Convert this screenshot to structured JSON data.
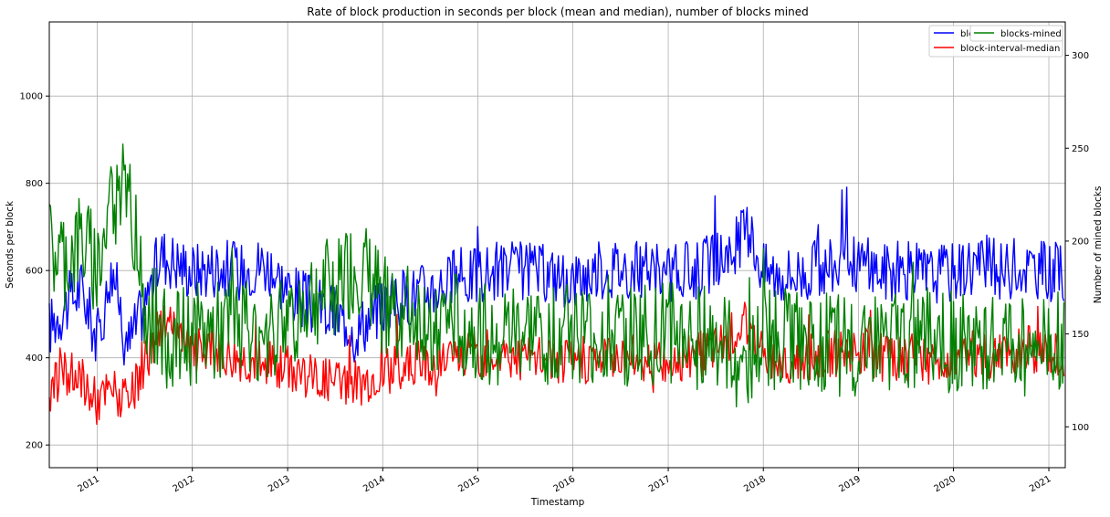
{
  "chart_data": {
    "type": "line",
    "title": "Rate of block production in seconds per block (mean and median), number of blocks mined",
    "xlabel": "Timestamp",
    "ylabel_left": "Seconds per block",
    "ylabel_right": "Number of mined blocks",
    "x_range": [
      "2010-07-01",
      "2021-03-05"
    ],
    "ylim_left": [
      148,
      1170
    ],
    "ylim_right": [
      78,
      318
    ],
    "x_ticks": [
      "2011",
      "2012",
      "2013",
      "2014",
      "2015",
      "2016",
      "2017",
      "2018",
      "2019",
      "2020",
      "2021"
    ],
    "y_ticks_left": [
      200,
      400,
      600,
      800,
      1000
    ],
    "y_ticks_right": [
      100,
      150,
      200,
      250,
      300
    ],
    "grid": true,
    "legend_left": {
      "placement": "top-right",
      "entries": [
        "block-interval-mean",
        "block-interval-median"
      ]
    },
    "legend_right": {
      "placement": "top-right",
      "entries": [
        "blocks-mined"
      ]
    },
    "colors": {
      "mean": "#0000ff",
      "median": "#ff0000",
      "mined": "#008000"
    },
    "series": [
      {
        "name": "block-interval-mean",
        "axis": "left",
        "color": "#0000ff",
        "x": [
          "2010-07-01",
          "2010-09-01",
          "2010-11-01",
          "2011-01-01",
          "2011-03-01",
          "2011-05-01",
          "2011-07-01",
          "2011-09-01",
          "2011-11-01",
          "2012-01-01",
          "2012-04-01",
          "2012-07-01",
          "2012-10-01",
          "2013-01-01",
          "2013-04-01",
          "2013-07-01",
          "2013-10-01",
          "2014-01-01",
          "2014-04-01",
          "2014-07-01",
          "2014-10-01",
          "2015-01-01",
          "2015-04-01",
          "2015-07-01",
          "2015-10-01",
          "2016-01-01",
          "2016-04-01",
          "2016-07-01",
          "2016-10-01",
          "2017-01-01",
          "2017-04-01",
          "2017-07-01",
          "2017-09-01",
          "2017-11-01",
          "2018-01-01",
          "2018-04-01",
          "2018-07-01",
          "2018-10-01",
          "2019-01-01",
          "2019-04-01",
          "2019-07-01",
          "2019-10-01",
          "2020-01-01",
          "2020-04-01",
          "2020-07-01",
          "2020-10-01",
          "2021-01-01",
          "2021-03-01"
        ],
        "y": [
          470,
          520,
          560,
          440,
          600,
          430,
          520,
          640,
          620,
          600,
          610,
          600,
          620,
          560,
          520,
          500,
          470,
          520,
          540,
          560,
          580,
          590,
          600,
          600,
          590,
          580,
          600,
          610,
          600,
          590,
          600,
          620,
          640,
          700,
          600,
          590,
          600,
          610,
          620,
          600,
          600,
          590,
          600,
          620,
          600,
          610,
          600,
          590
        ]
      },
      {
        "name": "block-interval-median",
        "axis": "left",
        "color": "#ff0000",
        "x": [
          "2010-07-01",
          "2010-09-01",
          "2010-11-01",
          "2011-01-01",
          "2011-03-01",
          "2011-05-01",
          "2011-07-01",
          "2011-09-01",
          "2011-11-01",
          "2012-01-01",
          "2012-04-01",
          "2012-07-01",
          "2012-10-01",
          "2013-01-01",
          "2013-04-01",
          "2013-07-01",
          "2013-10-01",
          "2014-01-01",
          "2014-04-01",
          "2014-07-01",
          "2014-10-01",
          "2015-01-01",
          "2015-04-01",
          "2015-07-01",
          "2015-10-01",
          "2016-01-01",
          "2016-04-01",
          "2016-07-01",
          "2016-10-01",
          "2017-01-01",
          "2017-04-01",
          "2017-07-01",
          "2017-09-01",
          "2017-11-01",
          "2018-01-01",
          "2018-04-01",
          "2018-07-01",
          "2018-10-01",
          "2019-01-01",
          "2019-04-01",
          "2019-07-01",
          "2019-10-01",
          "2020-01-01",
          "2020-04-01",
          "2020-07-01",
          "2020-10-01",
          "2021-01-01",
          "2021-03-01"
        ],
        "y": [
          330,
          360,
          350,
          300,
          330,
          290,
          380,
          480,
          450,
          420,
          410,
          400,
          390,
          380,
          360,
          350,
          340,
          370,
          380,
          390,
          400,
          410,
          410,
          400,
          400,
          390,
          400,
          410,
          400,
          390,
          400,
          420,
          450,
          480,
          410,
          390,
          400,
          410,
          420,
          400,
          400,
          390,
          400,
          410,
          400,
          420,
          410,
          400
        ]
      },
      {
        "name": "blocks-mined",
        "axis": "right",
        "color": "#008000",
        "x": [
          "2010-07-01",
          "2010-09-01",
          "2010-11-01",
          "2011-01-01",
          "2011-03-01",
          "2011-05-01",
          "2011-07-01",
          "2011-09-01",
          "2011-11-01",
          "2012-01-01",
          "2012-04-01",
          "2012-07-01",
          "2012-10-01",
          "2013-01-01",
          "2013-04-01",
          "2013-07-01",
          "2013-10-01",
          "2014-01-01",
          "2014-04-01",
          "2014-07-01",
          "2014-10-01",
          "2015-01-01",
          "2015-04-01",
          "2015-07-01",
          "2015-10-01",
          "2016-01-01",
          "2016-04-01",
          "2016-07-01",
          "2016-10-01",
          "2017-01-01",
          "2017-04-01",
          "2017-07-01",
          "2017-09-01",
          "2017-11-01",
          "2018-01-01",
          "2018-04-01",
          "2018-07-01",
          "2018-10-01",
          "2019-01-01",
          "2019-04-01",
          "2019-07-01",
          "2019-10-01",
          "2020-01-01",
          "2020-04-01",
          "2020-07-01",
          "2020-10-01",
          "2021-01-01",
          "2021-03-01"
        ],
        "y": [
          195,
          190,
          200,
          185,
          220,
          230,
          170,
          150,
          145,
          150,
          150,
          155,
          150,
          160,
          170,
          175,
          185,
          165,
          160,
          158,
          155,
          150,
          150,
          150,
          150,
          152,
          148,
          146,
          150,
          150,
          148,
          146,
          140,
          130,
          145,
          148,
          146,
          145,
          142,
          146,
          146,
          148,
          146,
          142,
          146,
          142,
          144,
          146
        ]
      }
    ]
  }
}
